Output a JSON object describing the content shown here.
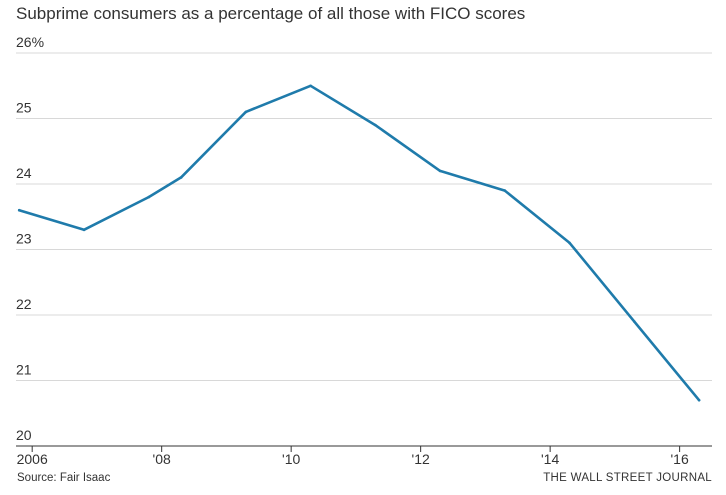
{
  "title": "Subprime consumers as a percentage of all those with FICO scores",
  "source": "Source: Fair Isaac",
  "credit": "THE WALL STREET JOURNAL",
  "colors": {
    "line": "#1f7bab",
    "grid": "#d8d8d8",
    "axis": "#333333"
  },
  "chart_data": {
    "type": "line",
    "title": "Subprime consumers as a percentage of all those with FICO scores",
    "xlabel": "",
    "ylabel": "",
    "ylim": [
      20,
      26
    ],
    "xlim": [
      2005.75,
      2016.5
    ],
    "grid": true,
    "yticks": [
      {
        "value": 26,
        "label": "26%"
      },
      {
        "value": 25,
        "label": "25"
      },
      {
        "value": 24,
        "label": "24"
      },
      {
        "value": 23,
        "label": "23"
      },
      {
        "value": 22,
        "label": "22"
      },
      {
        "value": 21,
        "label": "21"
      },
      {
        "value": 20,
        "label": "20"
      }
    ],
    "xticks": [
      {
        "value": 2006,
        "label": "2006"
      },
      {
        "value": 2008,
        "label": "'08"
      },
      {
        "value": 2010,
        "label": "'10"
      },
      {
        "value": 2012,
        "label": "'12"
      },
      {
        "value": 2014,
        "label": "'14"
      },
      {
        "value": 2016,
        "label": "'16"
      }
    ],
    "series": [
      {
        "x": [
          2005.8,
          2006.8,
          2007.8,
          2008.3,
          2009.3,
          2010.3,
          2011.3,
          2012.3,
          2013.3,
          2014.3,
          2015.3,
          2016.3
        ],
        "values": [
          23.6,
          23.3,
          23.8,
          24.1,
          25.1,
          25.5,
          24.9,
          24.2,
          23.9,
          23.1,
          21.9,
          20.7
        ]
      }
    ]
  }
}
